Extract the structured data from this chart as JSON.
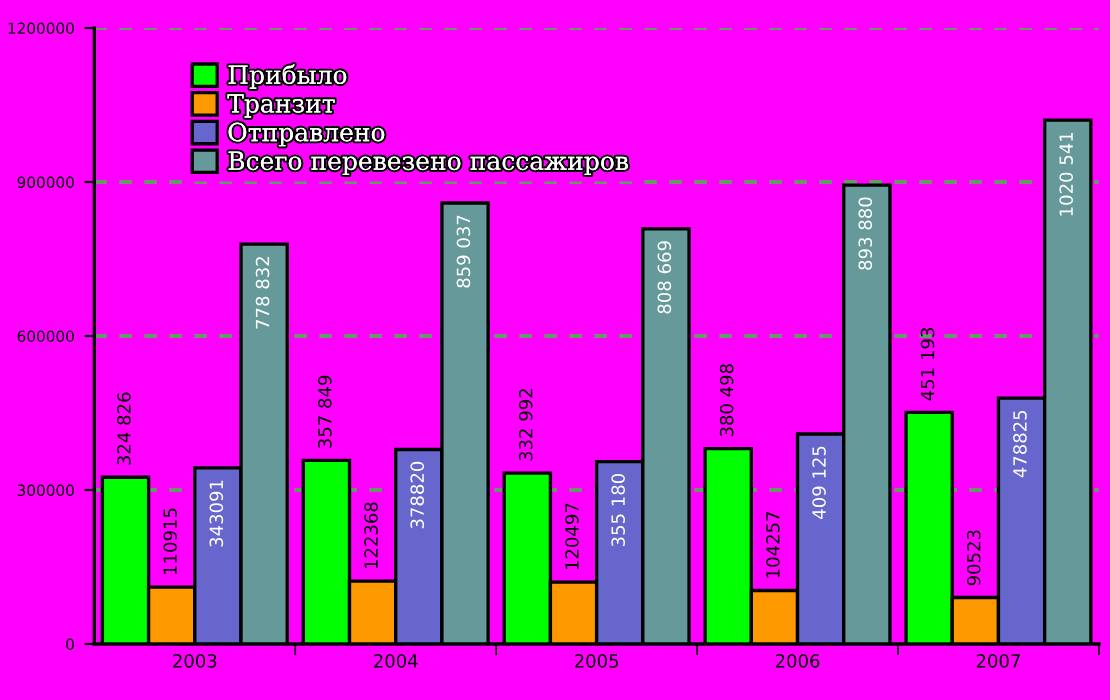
{
  "chart_data": {
    "type": "bar",
    "categories": [
      "2003",
      "2004",
      "2005",
      "2006",
      "2007"
    ],
    "series": [
      {
        "name": "Прибыло",
        "color": "#00ff00",
        "values": [
          324826,
          357849,
          332992,
          380498,
          451193
        ],
        "value_labels": [
          "324 826",
          "357 849",
          "332 992",
          "380 498",
          "451 193"
        ]
      },
      {
        "name": "Транзит",
        "color": "#ff9900",
        "values": [
          110915,
          122368,
          120497,
          104257,
          90523
        ],
        "value_labels": [
          "110915",
          "122368",
          "120497",
          "104257",
          "90523"
        ]
      },
      {
        "name": "Отправлено",
        "color": "#6666cc",
        "values": [
          343091,
          378820,
          355180,
          409125,
          478825
        ],
        "value_labels": [
          "343091",
          "378820",
          "355 180",
          "409 125",
          "478825"
        ]
      },
      {
        "name": "Всего перевезено пассажиров",
        "color": "#669999",
        "values": [
          778832,
          859037,
          808669,
          893880,
          1020541
        ],
        "value_labels": [
          "778 832",
          "859 037",
          "808 669",
          "893 880",
          "1020 541"
        ]
      }
    ],
    "ylim": [
      0,
      1200000
    ],
    "yticks": [
      0,
      300000,
      600000,
      900000,
      1200000
    ],
    "grid": "y",
    "legend": "top left"
  }
}
